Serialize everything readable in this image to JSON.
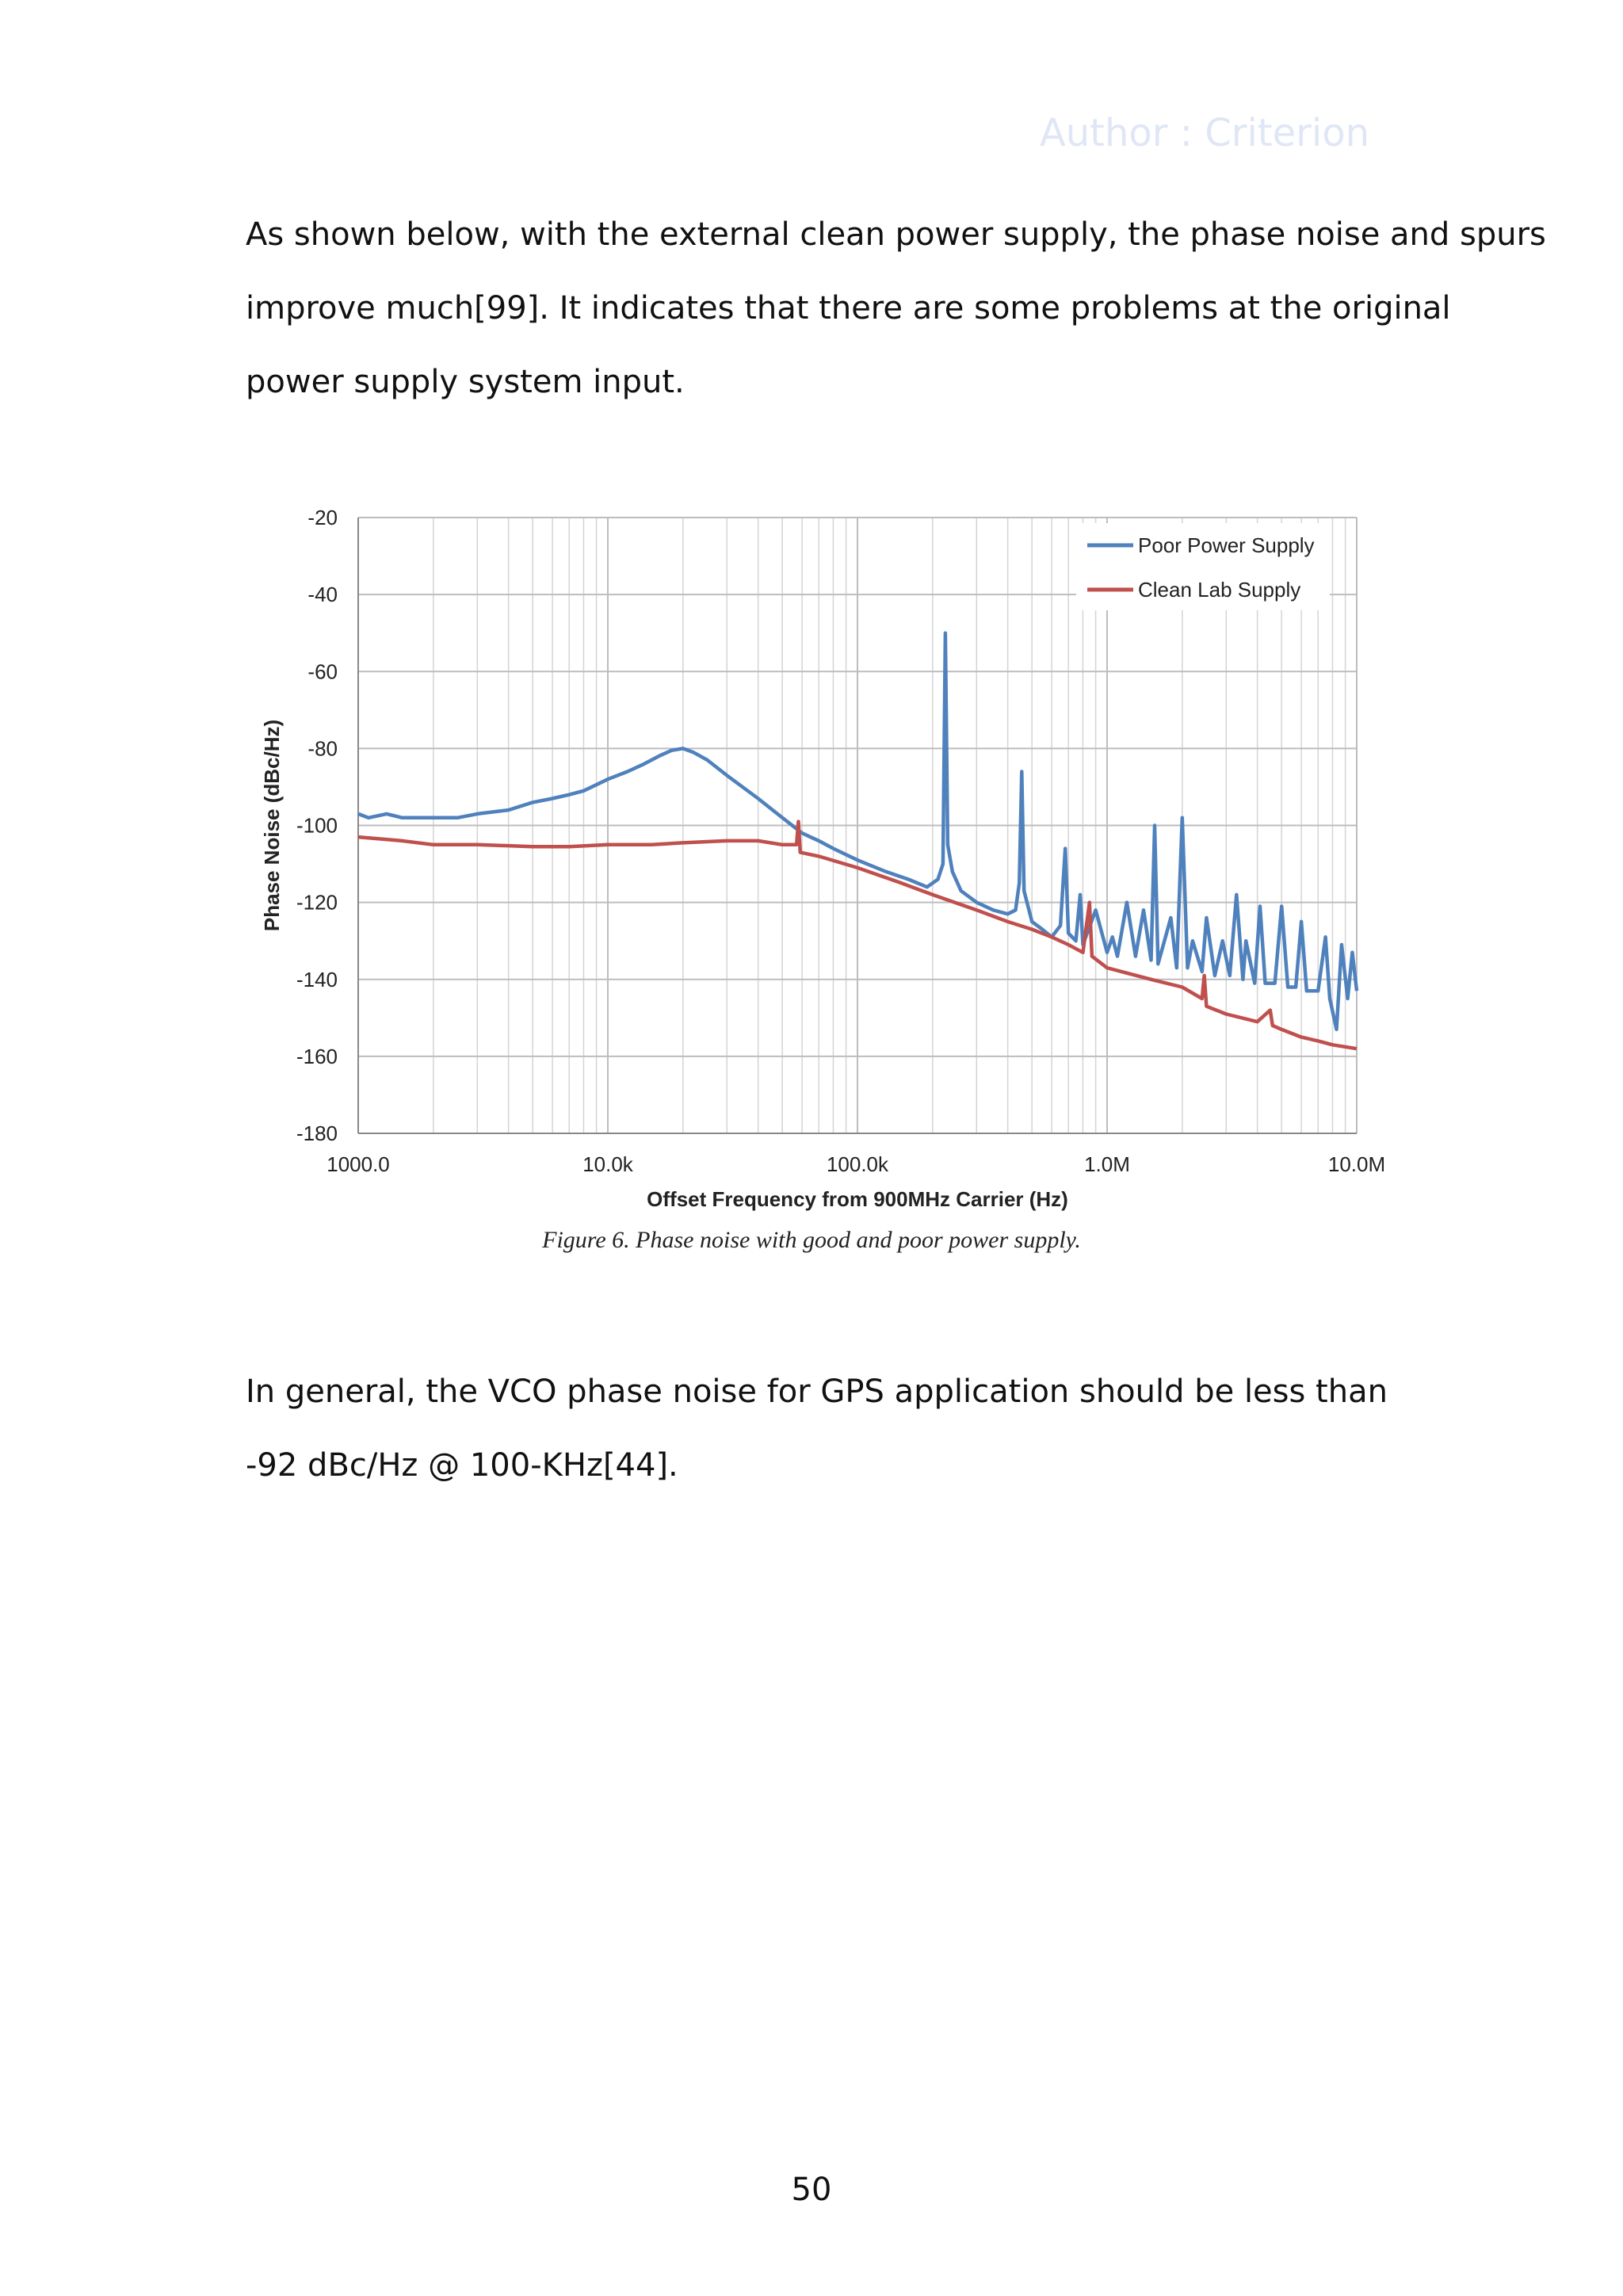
{
  "header": {
    "watermark": "Author : Criterion"
  },
  "paragraphs": [
    {
      "lines": [
        "As shown below, with the external clean power supply, the phase noise and spurs",
        "improve much[99]. It indicates that there are some problems at the original",
        "power supply system input."
      ]
    },
    {
      "lines": [
        "In general, the VCO phase noise for GPS application should be less than",
        "-92 dBc/Hz @ 100-KHz[44]."
      ]
    }
  ],
  "figure": {
    "caption": "Figure 6. Phase noise with good and poor power supply."
  },
  "page_number": "50",
  "chart_data": {
    "type": "line",
    "title": "",
    "xlabel": "Offset Frequency from 900MHz Carrier (Hz)",
    "ylabel": "Phase Noise (dBc/Hz)",
    "x_scale": "log",
    "xlim": [
      1000,
      10000000
    ],
    "ylim": [
      -180,
      -20
    ],
    "x_ticks": [
      1000,
      10000,
      100000,
      1000000,
      10000000
    ],
    "x_tick_labels": [
      "1000.0",
      "10.0k",
      "100.0k",
      "1.0M",
      "10.0M"
    ],
    "y_ticks": [
      -20,
      -40,
      -60,
      -80,
      -100,
      -120,
      -140,
      -160,
      -180
    ],
    "y_tick_labels": [
      "-20",
      "-40",
      "-60",
      "-80",
      "-100",
      "-120",
      "-140",
      "-160",
      "-180"
    ],
    "grid": true,
    "legend_position": "top-right",
    "series": [
      {
        "name": "Poor Power Supply",
        "color": "#4f81bd",
        "points": [
          [
            1000,
            -97
          ],
          [
            1100,
            -98
          ],
          [
            1300,
            -97
          ],
          [
            1500,
            -98
          ],
          [
            2000,
            -98
          ],
          [
            2500,
            -98
          ],
          [
            3000,
            -97
          ],
          [
            4000,
            -96
          ],
          [
            5000,
            -94
          ],
          [
            6000,
            -93
          ],
          [
            7000,
            -92
          ],
          [
            8000,
            -91
          ],
          [
            10000,
            -88
          ],
          [
            12000,
            -86
          ],
          [
            14000,
            -84
          ],
          [
            16000,
            -82
          ],
          [
            18000,
            -80.5
          ],
          [
            20000,
            -80
          ],
          [
            22000,
            -81
          ],
          [
            25000,
            -83
          ],
          [
            30000,
            -87
          ],
          [
            40000,
            -93
          ],
          [
            50000,
            -98
          ],
          [
            60000,
            -102
          ],
          [
            70000,
            -104
          ],
          [
            80000,
            -106
          ],
          [
            100000,
            -109
          ],
          [
            130000,
            -112
          ],
          [
            160000,
            -114
          ],
          [
            190000,
            -116
          ],
          [
            210000,
            -114
          ],
          [
            220000,
            -110
          ],
          [
            225000,
            -50
          ],
          [
            230000,
            -105
          ],
          [
            240000,
            -112
          ],
          [
            260000,
            -117
          ],
          [
            300000,
            -120
          ],
          [
            350000,
            -122
          ],
          [
            400000,
            -123
          ],
          [
            430000,
            -122
          ],
          [
            445000,
            -115
          ],
          [
            455000,
            -86
          ],
          [
            465000,
            -117
          ],
          [
            500000,
            -125
          ],
          [
            550000,
            -127
          ],
          [
            600000,
            -129
          ],
          [
            650000,
            -126
          ],
          [
            680000,
            -106
          ],
          [
            700000,
            -128
          ],
          [
            750000,
            -130
          ],
          [
            780000,
            -118
          ],
          [
            800000,
            -131
          ],
          [
            900000,
            -122
          ],
          [
            1000000,
            -133
          ],
          [
            1050000,
            -129
          ],
          [
            1100000,
            -134
          ],
          [
            1200000,
            -120
          ],
          [
            1300000,
            -134
          ],
          [
            1400000,
            -122
          ],
          [
            1500000,
            -135
          ],
          [
            1550000,
            -100
          ],
          [
            1600000,
            -136
          ],
          [
            1800000,
            -124
          ],
          [
            1900000,
            -137
          ],
          [
            2000000,
            -98
          ],
          [
            2100000,
            -137
          ],
          [
            2200000,
            -130
          ],
          [
            2400000,
            -138
          ],
          [
            2500000,
            -124
          ],
          [
            2700000,
            -139
          ],
          [
            2900000,
            -130
          ],
          [
            3100000,
            -139
          ],
          [
            3300000,
            -118
          ],
          [
            3500000,
            -140
          ],
          [
            3600000,
            -130
          ],
          [
            3900000,
            -141
          ],
          [
            4100000,
            -121
          ],
          [
            4300000,
            -141
          ],
          [
            4700000,
            -141
          ],
          [
            5000000,
            -121
          ],
          [
            5300000,
            -142
          ],
          [
            5700000,
            -142
          ],
          [
            6000000,
            -125
          ],
          [
            6300000,
            -143
          ],
          [
            7000000,
            -143
          ],
          [
            7500000,
            -129
          ],
          [
            7800000,
            -145
          ],
          [
            8300000,
            -153
          ],
          [
            8700000,
            -131
          ],
          [
            9200000,
            -145
          ],
          [
            9600000,
            -133
          ],
          [
            10000000,
            -143
          ]
        ]
      },
      {
        "name": "Clean Lab Supply",
        "color": "#c0504d",
        "points": [
          [
            1000,
            -103
          ],
          [
            1500,
            -104
          ],
          [
            2000,
            -105
          ],
          [
            3000,
            -105
          ],
          [
            5000,
            -105.5
          ],
          [
            7000,
            -105.5
          ],
          [
            10000,
            -105
          ],
          [
            15000,
            -105
          ],
          [
            20000,
            -104.5
          ],
          [
            30000,
            -104
          ],
          [
            40000,
            -104
          ],
          [
            50000,
            -105
          ],
          [
            57000,
            -105
          ],
          [
            58000,
            -99
          ],
          [
            59000,
            -107
          ],
          [
            70000,
            -108
          ],
          [
            100000,
            -111
          ],
          [
            150000,
            -115
          ],
          [
            200000,
            -118
          ],
          [
            300000,
            -122
          ],
          [
            400000,
            -125
          ],
          [
            500000,
            -127
          ],
          [
            600000,
            -129
          ],
          [
            700000,
            -131
          ],
          [
            800000,
            -133
          ],
          [
            850000,
            -120
          ],
          [
            870000,
            -134
          ],
          [
            1000000,
            -137
          ],
          [
            1500000,
            -140
          ],
          [
            2000000,
            -142
          ],
          [
            2400000,
            -145
          ],
          [
            2450000,
            -139
          ],
          [
            2500000,
            -147
          ],
          [
            3000000,
            -149
          ],
          [
            4000000,
            -151
          ],
          [
            4500000,
            -148
          ],
          [
            4600000,
            -152
          ],
          [
            5000000,
            -153
          ],
          [
            6000000,
            -155
          ],
          [
            7000000,
            -156
          ],
          [
            8000000,
            -157
          ],
          [
            10000000,
            -158
          ]
        ]
      }
    ]
  }
}
